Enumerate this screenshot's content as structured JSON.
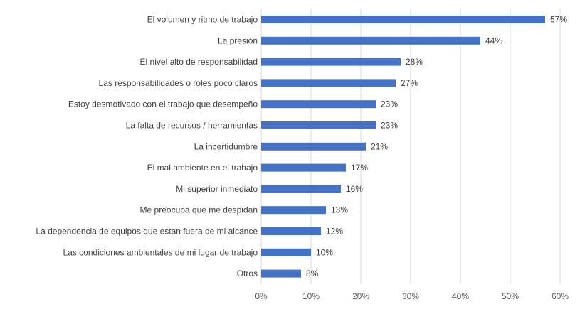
{
  "chart_data": {
    "type": "bar",
    "orientation": "horizontal",
    "categories": [
      "El volumen y ritmo de trabajo",
      "La presión",
      "El nivel alto de responsabilidad",
      "Las responsabilidades o roles poco claros",
      "Estoy desmotivado con el trabajo que desempeño",
      "La falta de recursos / herramientas",
      "La incertidumbre",
      "El mal ambiente en el trabajo",
      "Mi superior inmediato",
      "Me preocupa que me despidan",
      "La dependencia de equipos que están fuera de mi alcance",
      "Las condiciones ambientales de mi lugar de trabajo",
      "Otros"
    ],
    "values": [
      57,
      44,
      28,
      27,
      23,
      23,
      21,
      17,
      16,
      13,
      12,
      10,
      8
    ],
    "value_labels": [
      "57%",
      "44%",
      "28%",
      "27%",
      "23%",
      "23%",
      "21%",
      "17%",
      "16%",
      "13%",
      "12%",
      "10%",
      "8%"
    ],
    "xlim": [
      0,
      60
    ],
    "x_ticks": [
      "0%",
      "10%",
      "20%",
      "30%",
      "40%",
      "50%",
      "60%"
    ],
    "grid": "vertical",
    "bar_color": "#4472C4",
    "gridline_color": "#D9D9D9",
    "legend": "none"
  }
}
